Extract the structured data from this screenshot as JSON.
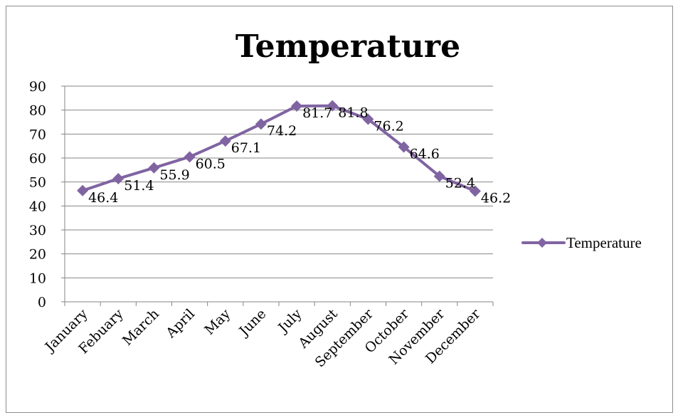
{
  "chart_data": {
    "type": "line",
    "title": "Temperature",
    "categories": [
      "January",
      "Febuary",
      "March",
      "April",
      "May",
      "June",
      "July",
      "August",
      "September",
      "October",
      "November",
      "December"
    ],
    "series": [
      {
        "name": "Temperature",
        "values": [
          46.4,
          51.4,
          55.9,
          60.5,
          67.1,
          74.2,
          81.7,
          81.8,
          76.2,
          64.6,
          52.4,
          46.2
        ]
      }
    ],
    "y_ticks": [
      "0",
      "10",
      "20",
      "30",
      "40",
      "50",
      "60",
      "70",
      "80",
      "90"
    ],
    "ylim": [
      0,
      90
    ],
    "xlabel": "",
    "ylabel": "",
    "grid": "horizontal",
    "legend": "right",
    "data_labels": true,
    "colors": {
      "series": "#8064A2",
      "grid": "#868686",
      "axis": "#868686"
    }
  }
}
